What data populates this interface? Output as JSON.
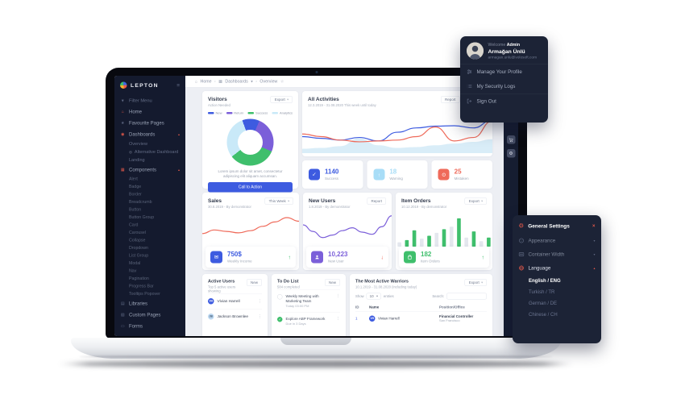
{
  "colors": {
    "red": "#e3594a",
    "blue": "#3d5be0",
    "purple": "#7b5fd9",
    "green": "#3fbf6c",
    "light_blue": "#a8ddf7",
    "navy": "#1c2336"
  },
  "icons": {
    "hamburger": "≡",
    "filter": "▼",
    "home": "⌂",
    "star": "★",
    "star_outline": "☆",
    "dashboards": "◉",
    "components": "▦",
    "libraries": "▤",
    "custom_pages": "▧",
    "forms": "▭",
    "bullet": "◎",
    "chevron_up": "▴",
    "chevron_down": "▾",
    "separator": "›",
    "dots": "⋮",
    "check": "✓",
    "arrow_up": "↑",
    "arrow_down": "↓",
    "gear": "⚙",
    "close": "×",
    "envelope": "✉",
    "grid": "▦"
  },
  "profile_menu": {
    "welcome_prefix": "Welcome",
    "welcome_name": "Admin",
    "full_name": "Armağan Ünlü",
    "email": "armagan.unlu@volosoft.com",
    "items": [
      {
        "label": "Manage Your Profile",
        "icon": "sliders-icon"
      },
      {
        "label": "My Security Logs",
        "icon": "list-icon"
      },
      {
        "label": "Sign Out",
        "icon": "sign-out-icon"
      }
    ]
  },
  "settings_panel": {
    "title": "General Settings",
    "items": [
      {
        "label": "Appearance",
        "icon": "appearance-icon"
      },
      {
        "label": "Container Width",
        "icon": "container-width-icon"
      },
      {
        "label": "Language",
        "icon": "language-icon",
        "expanded": true
      }
    ],
    "languages": [
      {
        "label": "English / ENG",
        "active": true
      },
      {
        "label": "Turkish / TR",
        "active": false
      },
      {
        "label": "German / DE",
        "active": false
      },
      {
        "label": "Chinese / CH",
        "active": false
      }
    ]
  },
  "dashboard": {
    "brand": "LEPTON",
    "sidebar": {
      "filter": "Filter Menu",
      "home": "Home",
      "favourite": "Favourite Pages",
      "dashboards": "Dashboards",
      "dashboards_children": [
        "Overview",
        "Alternative Dashboard",
        "Landing"
      ],
      "components": "Components",
      "components_children": [
        "Alert",
        "Badge",
        "Border",
        "Breadcrumb",
        "Button",
        "Button Group",
        "Card",
        "Carousel",
        "Collapse",
        "Dropdown",
        "List Group",
        "Modal",
        "Nav",
        "Pagination",
        "Progress Bar",
        "Tooltips Popover"
      ],
      "libraries": "Libraries",
      "custom_pages": "Custom Pages",
      "forms": "Forms"
    },
    "breadcrumb": {
      "home": "Home",
      "section": "Dashboards",
      "page": "Overview"
    },
    "visitors": {
      "title": "Visitors",
      "subtitle": "Action Needed",
      "export_label": "Export",
      "description": "Lorem ipsum dolor sit amet, consectetur adipiscing elit aliquam accumsan.",
      "cta_label": "Call to Action"
    },
    "all_activities": {
      "title": "All Activities",
      "subtitle": "12.3.2019 - 31.08.2020 This week until today",
      "report_label": "Report",
      "settings_label": "Settings"
    },
    "stats": [
      {
        "value": "1140",
        "label": "Success",
        "color": "#3d5be0"
      },
      {
        "value": "18",
        "label": "Warning",
        "color": "#a8ddf7"
      },
      {
        "value": "25",
        "label": "Mistaken",
        "color": "#ef6a5a"
      }
    ],
    "sales": {
      "title": "Sales",
      "subtitle": "30.8.2019 - By demonstrator",
      "button": "This Week",
      "value": "750$",
      "label": "Weekly Income",
      "trend_icon": "↑",
      "accent": "#3d5be0"
    },
    "new_users": {
      "title": "New Users",
      "subtitle": "1.8.2019 - By demonstrator",
      "button": "Report",
      "value": "10,223",
      "label": "New User",
      "trend_icon": "↓",
      "accent": "#7b5fd9"
    },
    "item_orders": {
      "title": "Item Orders",
      "subtitle": "10.12.2019 - By demonstrator",
      "button": "Export",
      "value": "182",
      "label": "Item Orders",
      "trend_icon": "↑",
      "accent": "#3fbf6c"
    },
    "active_users": {
      "title": "Active Users",
      "subtitle": "Top 5 active users showing",
      "button": "New",
      "users": [
        {
          "name": "Vivian Harrell",
          "initials": "VH"
        },
        {
          "name": "Jackson Brownlee",
          "initials": "JB"
        }
      ]
    },
    "todo": {
      "title": "To Do List",
      "subtitle": "584 completed",
      "button": "New",
      "items": [
        {
          "text": "Weekly Meeting with Marketing Team",
          "sub": "Today 03:00 PM",
          "done": false
        },
        {
          "text": "Explore ABP Framework",
          "sub": "Due in 3 Days",
          "done": true
        }
      ]
    },
    "warriors": {
      "title": "The Most Active Warriors",
      "subtitle": "10.1.2019 - 31.08.2020 (including today)",
      "export_label": "Export",
      "show_label": "Show",
      "page_size": "10",
      "entries_label": "entries",
      "search_label": "Search:",
      "columns": [
        "ID",
        "Name",
        "Position/Office"
      ],
      "rows": [
        {
          "id": "1",
          "name": "Vivian Harrell",
          "initials": "VH",
          "position": "Financial Controller",
          "office": "San Francisco"
        }
      ]
    }
  },
  "chart_data": [
    {
      "id": "visitors_donut",
      "type": "pie",
      "start_angle": -20,
      "labels": [
        "New",
        "Return",
        "Success",
        "Analytics"
      ],
      "values": [
        12,
        25,
        33,
        30
      ],
      "colors": [
        "#3d5be0",
        "#7b5fd9",
        "#3fbf6c",
        "#c9e9f8"
      ]
    },
    {
      "id": "all_activities",
      "type": "line",
      "x": [
        0,
        1,
        2,
        3,
        4,
        5,
        6,
        7,
        8,
        9,
        10
      ],
      "series": [
        {
          "name": "analytics-area",
          "type": "area",
          "color": "#d9edf8",
          "values": [
            10,
            12,
            16,
            34,
            18,
            12,
            14,
            18,
            22,
            26,
            32
          ]
        },
        {
          "name": "activity-blue",
          "color": "#3d5be0",
          "values": [
            38,
            34,
            30,
            36,
            28,
            48,
            58,
            62,
            63,
            58,
            76
          ]
        },
        {
          "name": "activity-red",
          "color": "#ef6a5a",
          "values": [
            44,
            38,
            30,
            26,
            28,
            30,
            38,
            60,
            28,
            36,
            74
          ]
        }
      ]
    },
    {
      "id": "sales",
      "type": "line",
      "series": [
        {
          "name": "sales-week",
          "color": "#ef6a5a",
          "values": [
            36,
            46,
            42,
            38,
            44,
            56,
            68,
            80,
            70
          ]
        }
      ]
    },
    {
      "id": "new_users",
      "type": "line",
      "series": [
        {
          "name": "new-users",
          "color": "#7b5fd9",
          "values": [
            60,
            42,
            25,
            32,
            44,
            52,
            40,
            34,
            55,
            85
          ]
        }
      ]
    },
    {
      "id": "item_orders",
      "type": "bar",
      "values": [
        12,
        18,
        45,
        22,
        30,
        38,
        48,
        55,
        78,
        25,
        42,
        15,
        25
      ],
      "colors": [
        "#e4e7ee",
        "#3fbf6c",
        "#3fbf6c",
        "#e4e7ee",
        "#3fbf6c",
        "#e4e7ee",
        "#3fbf6c",
        "#e4e7ee",
        "#3fbf6c",
        "#e4e7ee",
        "#3fbf6c",
        "#e4e7ee",
        "#3fbf6c"
      ]
    }
  ]
}
